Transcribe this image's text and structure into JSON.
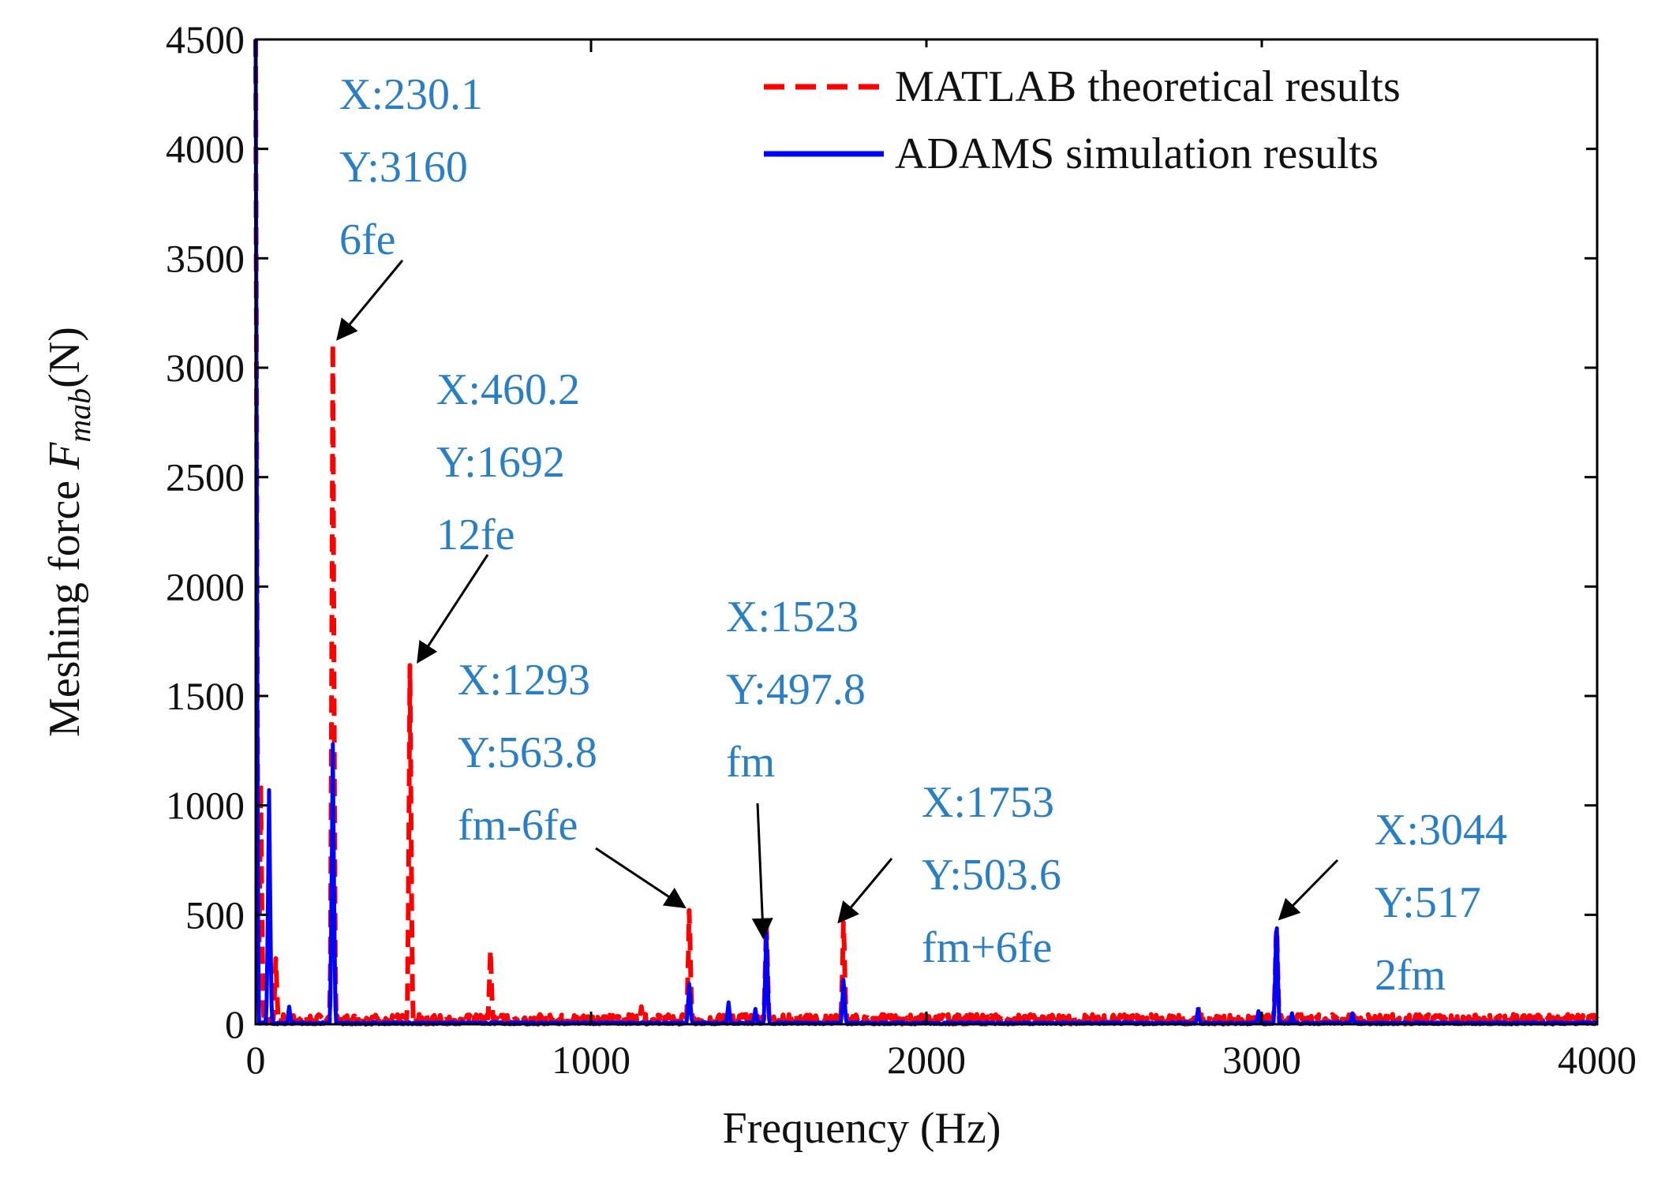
{
  "chart_data": {
    "type": "line",
    "title": "",
    "xlabel": "Frequency (Hz)",
    "ylabel": {
      "main": "Meshing force ",
      "var": "F",
      "sub": "mab",
      "unit": "(N)"
    },
    "xlim": [
      0,
      4000
    ],
    "ylim": [
      0,
      4500
    ],
    "xticks": [
      0,
      1000,
      2000,
      3000,
      4000
    ],
    "xtick_labels": [
      "0",
      "1000",
      "2000",
      "3000",
      "4000"
    ],
    "yticks": [
      0,
      500,
      1000,
      1500,
      2000,
      2500,
      3000,
      3500,
      4000,
      4500
    ],
    "ytick_labels": [
      "0",
      "500",
      "1000",
      "1500",
      "2000",
      "2500",
      "3000",
      "3500",
      "4000",
      "4500"
    ],
    "grid": false,
    "legend_position": "top-right",
    "series": [
      {
        "name": "MATLAB theoretical results",
        "color": "#ff0000",
        "style": "dashed",
        "peaks": [
          [
            0,
            4500
          ],
          [
            15,
            1100
          ],
          [
            60,
            300
          ],
          [
            230.1,
            3160
          ],
          [
            460.2,
            1692
          ],
          [
            700,
            340
          ],
          [
            1150,
            80
          ],
          [
            1293,
            563.8
          ],
          [
            1523,
            497.8
          ],
          [
            1753,
            503.6
          ],
          [
            2810,
            80
          ],
          [
            3044,
            517
          ],
          [
            3270,
            60
          ]
        ]
      },
      {
        "name": "ADAMS simulation results",
        "color": "#0000ff",
        "style": "solid",
        "peaks": [
          [
            0,
            4500
          ],
          [
            40,
            1070
          ],
          [
            100,
            80
          ],
          [
            230,
            1280
          ],
          [
            1293,
            200
          ],
          [
            1410,
            100
          ],
          [
            1490,
            70
          ],
          [
            1523,
            455
          ],
          [
            1753,
            220
          ],
          [
            2810,
            70
          ],
          [
            2990,
            60
          ],
          [
            3044,
            517
          ],
          [
            3090,
            50
          ],
          [
            3270,
            50
          ]
        ]
      }
    ],
    "annotations": [
      {
        "lines": [
          "X:230.1",
          "Y:3160",
          "6fe"
        ],
        "x": 230.1,
        "y": 3160
      },
      {
        "lines": [
          "X:460.2",
          "Y:1692",
          "12fe"
        ],
        "x": 460.2,
        "y": 1692
      },
      {
        "lines": [
          "X:1293",
          "Y:563.8",
          "fm-6fe"
        ],
        "x": 1293,
        "y": 563.8
      },
      {
        "lines": [
          "X:1523",
          "Y:497.8",
          "fm"
        ],
        "x": 1523,
        "y": 497.8
      },
      {
        "lines": [
          "X:1753",
          "Y:503.6",
          "fm+6fe"
        ],
        "x": 1753,
        "y": 503.6
      },
      {
        "lines": [
          "X:3044",
          "Y:517",
          "2fm"
        ],
        "x": 3044,
        "y": 517
      }
    ]
  }
}
